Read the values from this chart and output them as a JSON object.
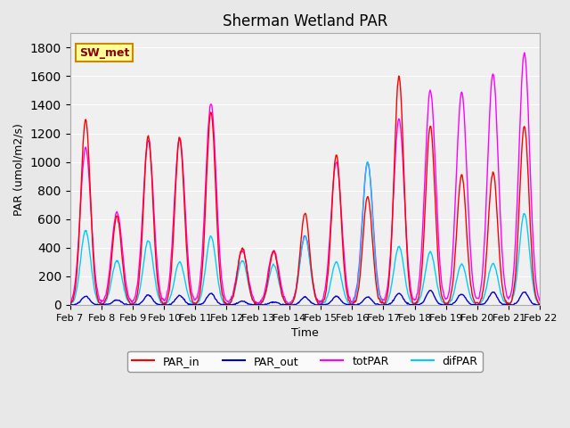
{
  "title": "Sherman Wetland PAR",
  "ylabel": "PAR (umol/m2/s)",
  "xlabel": "Time",
  "station_label": "SW_met",
  "ylim": [
    0,
    1900
  ],
  "yticks": [
    0,
    200,
    400,
    600,
    800,
    1000,
    1200,
    1400,
    1600,
    1800
  ],
  "xtick_labels": [
    "Feb 7",
    "Feb 8",
    "Feb 9",
    "Feb 10",
    "Feb 11",
    "Feb 12",
    "Feb 13",
    "Feb 14",
    "Feb 15",
    "Feb 16",
    "Feb 17",
    "Feb 18",
    "Feb 19",
    "Feb 20",
    "Feb 21",
    "Feb 22"
  ],
  "colors": {
    "PAR_in": "#ff0000",
    "PAR_out": "#0000cc",
    "totPAR": "#ff00ff",
    "difPAR": "#00ccff"
  },
  "background_color": "#e8e8e8",
  "plot_bg_color": "#f0f0f0",
  "legend_entries": [
    "PAR_in",
    "PAR_out",
    "totPAR",
    "difPAR"
  ],
  "daily_peaks": {
    "PAR_in": [
      1300,
      620,
      1180,
      1170,
      1350,
      400,
      370,
      640,
      1050,
      760,
      1600,
      1250,
      910,
      930,
      1250
    ],
    "totPAR": [
      1100,
      650,
      1150,
      1160,
      1410,
      380,
      380,
      480,
      1000,
      1000,
      1300,
      1500,
      1490,
      1620,
      1760
    ],
    "PAR_out": [
      60,
      35,
      70,
      65,
      80,
      25,
      20,
      55,
      60,
      55,
      80,
      100,
      75,
      90,
      90
    ],
    "difPAR": [
      520,
      310,
      450,
      300,
      480,
      310,
      280,
      480,
      300,
      1000,
      410,
      370,
      285,
      290,
      640
    ]
  }
}
